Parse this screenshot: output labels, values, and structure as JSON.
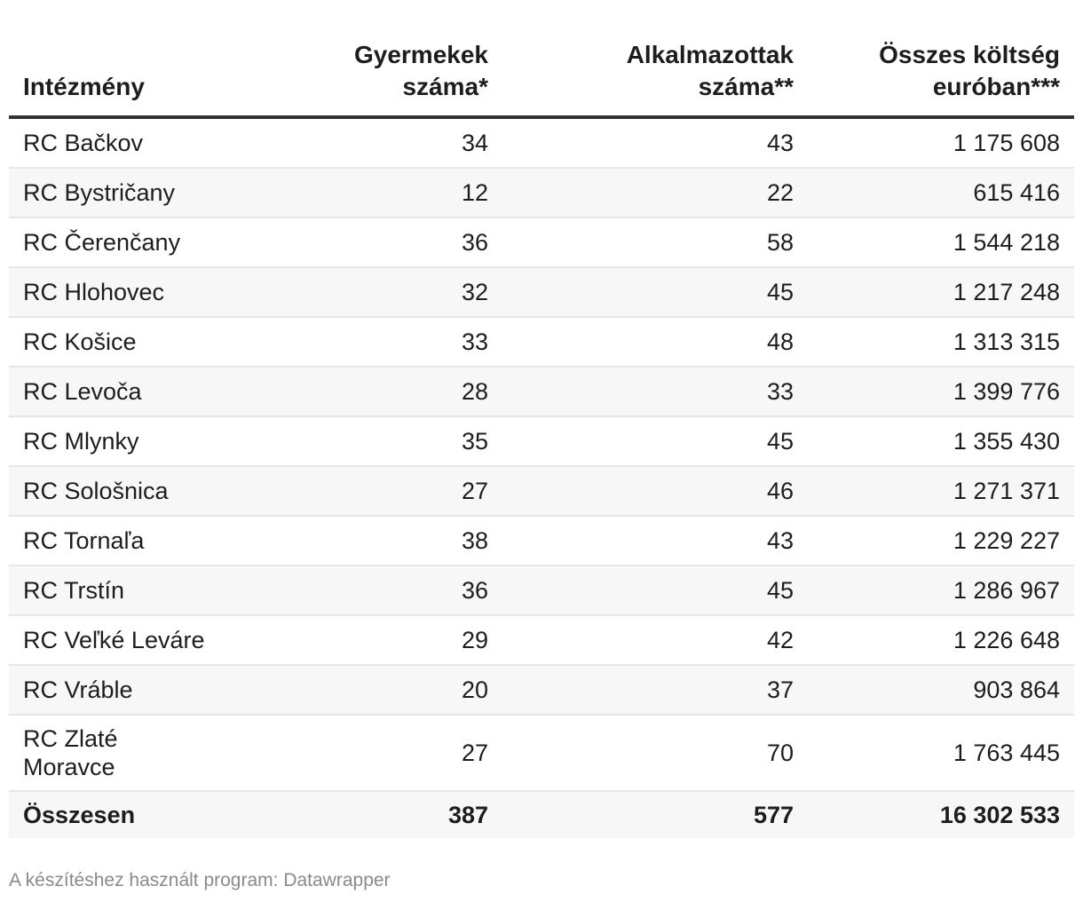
{
  "chart_data": {
    "type": "table",
    "columns": [
      {
        "line1": "",
        "line2": "Intézmény"
      },
      {
        "line1": "Gyermekek",
        "line2": "száma*"
      },
      {
        "line1": "Alkalmazottak",
        "line2": "száma**"
      },
      {
        "line1": "Összes költség",
        "line2": "euróban***"
      }
    ],
    "rows": [
      {
        "name_line1": "RC Bačkov",
        "name_line2": "",
        "children": "34",
        "employees": "43",
        "cost": "1 175 608"
      },
      {
        "name_line1": "RC Bystričany",
        "name_line2": "",
        "children": "12",
        "employees": "22",
        "cost": "615 416"
      },
      {
        "name_line1": "RC Čerenčany",
        "name_line2": "",
        "children": "36",
        "employees": "58",
        "cost": "1 544 218"
      },
      {
        "name_line1": "RC Hlohovec",
        "name_line2": "",
        "children": "32",
        "employees": "45",
        "cost": "1 217 248"
      },
      {
        "name_line1": "RC Košice",
        "name_line2": "",
        "children": "33",
        "employees": "48",
        "cost": "1 313 315"
      },
      {
        "name_line1": "RC Levoča",
        "name_line2": "",
        "children": "28",
        "employees": "33",
        "cost": "1 399 776"
      },
      {
        "name_line1": "RC Mlynky",
        "name_line2": "",
        "children": "35",
        "employees": "45",
        "cost": "1 355 430"
      },
      {
        "name_line1": "RC Sološnica",
        "name_line2": "",
        "children": "27",
        "employees": "46",
        "cost": "1 271 371"
      },
      {
        "name_line1": "RC Tornaľa",
        "name_line2": "",
        "children": "38",
        "employees": "43",
        "cost": "1 229 227"
      },
      {
        "name_line1": "RC Trstín",
        "name_line2": "",
        "children": "36",
        "employees": "45",
        "cost": "1 286 967"
      },
      {
        "name_line1": "RC Veľké Leváre",
        "name_line2": "",
        "children": "29",
        "employees": "42",
        "cost": "1 226 648"
      },
      {
        "name_line1": "RC Vráble",
        "name_line2": "",
        "children": "20",
        "employees": "37",
        "cost": "903 864"
      },
      {
        "name_line1": "RC Zlaté",
        "name_line2": "Moravce",
        "children": "27",
        "employees": "70",
        "cost": "1 763 445"
      }
    ],
    "total": {
      "name": "Összesen",
      "children": "387",
      "employees": "577",
      "cost": "16 302 533"
    }
  },
  "footer": {
    "note": "A készítéshez használt program: Datawrapper"
  }
}
